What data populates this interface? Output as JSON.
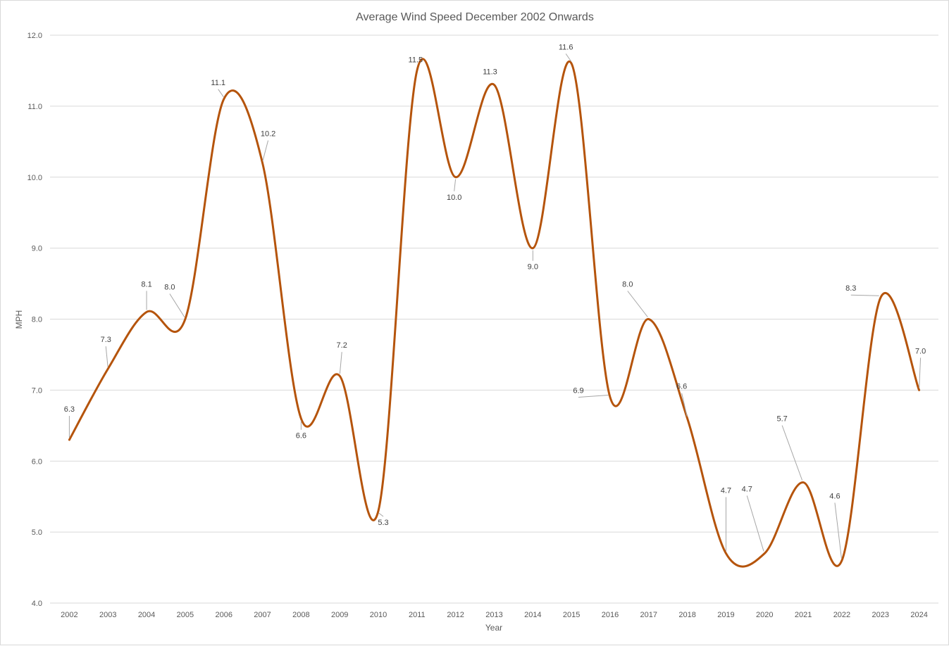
{
  "chart_data": {
    "type": "line",
    "smooth": true,
    "title": "Average Wind Speed December 2002 Onwards",
    "xlabel": "Year",
    "ylabel": "MPH",
    "ylim": [
      4.0,
      12.0
    ],
    "y_ticks": [
      "4.0",
      "5.0",
      "6.0",
      "7.0",
      "8.0",
      "9.0",
      "10.0",
      "11.0",
      "12.0"
    ],
    "grid": true,
    "legend": "none",
    "categories": [
      "2002",
      "2003",
      "2004",
      "2005",
      "2006",
      "2007",
      "2008",
      "2009",
      "2010",
      "2011",
      "2012",
      "2013",
      "2014",
      "2015",
      "2016",
      "2017",
      "2018",
      "2019",
      "2020",
      "2021",
      "2022",
      "2023",
      "2024"
    ],
    "series": [
      {
        "values": [
          6.3,
          7.3,
          8.1,
          8.0,
          11.1,
          10.2,
          6.6,
          7.2,
          5.3,
          11.5,
          10.0,
          11.3,
          9.0,
          11.6,
          6.9,
          8.0,
          6.6,
          4.7,
          4.7,
          5.7,
          4.6,
          8.3,
          7.0
        ],
        "data_labels": [
          "6.3",
          "7.3",
          "8.1",
          "8.0",
          "11.1",
          "10.2",
          "6.6",
          "7.2",
          "5.3",
          "11.5",
          "10.0",
          "11.3",
          "9.0",
          "11.6",
          "6.9",
          "8.0",
          "6.6",
          "4.7",
          "4.7",
          "5.7",
          "4.6",
          "8.3",
          "7.0"
        ],
        "color": "#b5540c"
      }
    ]
  }
}
